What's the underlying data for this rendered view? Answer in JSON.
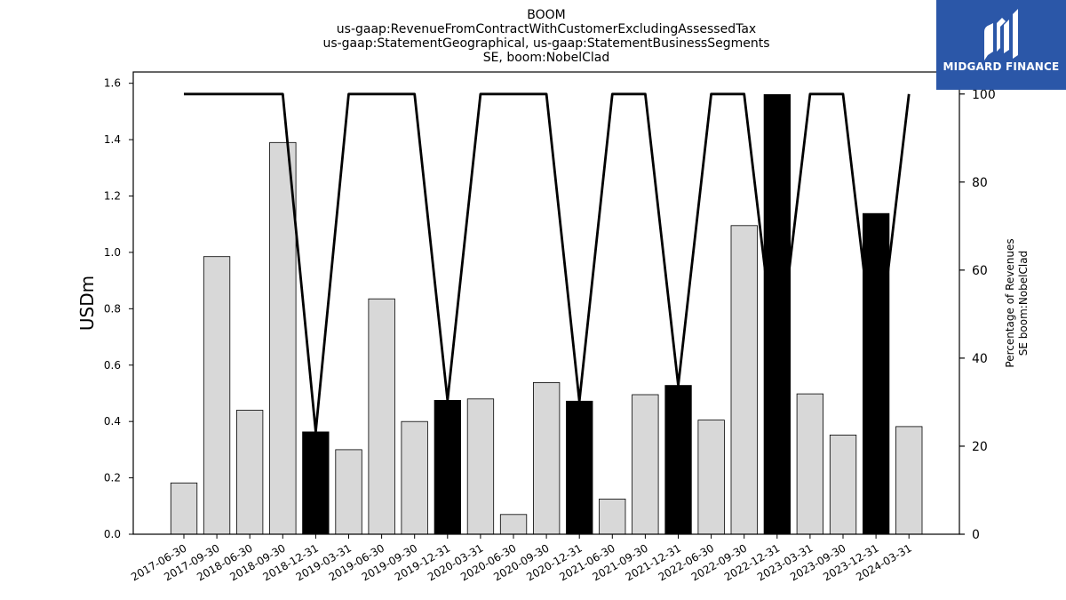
{
  "chart_data": {
    "type": "bar",
    "title_lines": [
      "BOOM",
      "us-gaap:RevenueFromContractWithCustomerExcludingAssessedTax",
      "us-gaap:StatementGeographical, us-gaap:StatementBusinessSegments",
      "SE, boom:NobelClad"
    ],
    "ylabel": "USDm",
    "y2label_lines": [
      "Percentage of Revenues",
      "SE boom:NobelClad"
    ],
    "categories": [
      "2017-06-30",
      "2017-09-30",
      "2018-06-30",
      "2018-09-30",
      "2018-12-31",
      "2019-03-31",
      "2019-06-30",
      "2019-09-30",
      "2019-12-31",
      "2020-03-31",
      "2020-06-30",
      "2020-09-30",
      "2020-12-31",
      "2021-06-30",
      "2021-09-30",
      "2021-12-31",
      "2022-06-30",
      "2022-09-30",
      "2022-12-31",
      "2023-03-31",
      "2023-09-30",
      "2023-12-31",
      "2024-03-31"
    ],
    "values": [
      0.182,
      0.985,
      0.44,
      1.39,
      0.363,
      0.3,
      0.835,
      0.4,
      0.475,
      0.48,
      0.07,
      0.538,
      0.472,
      0.125,
      0.495,
      0.528,
      0.405,
      1.095,
      1.56,
      0.498,
      0.352,
      1.138,
      0.382
    ],
    "highlighted": [
      false,
      false,
      false,
      false,
      true,
      false,
      false,
      false,
      true,
      false,
      false,
      false,
      true,
      false,
      false,
      true,
      false,
      false,
      true,
      false,
      false,
      true,
      false
    ],
    "percent_series": [
      100,
      100,
      100,
      100,
      23.3,
      100,
      100,
      100,
      30.4,
      100,
      100,
      100,
      30.2,
      100,
      100,
      33.8,
      100,
      100,
      37.0,
      100,
      100,
      36.5,
      100
    ],
    "ylim": [
      0,
      1.64
    ],
    "yticks": [
      0.0,
      0.2,
      0.4,
      0.6,
      0.8,
      1.0,
      1.2,
      1.4,
      1.6
    ],
    "y2lim": [
      0,
      105
    ],
    "y2ticks": [
      0,
      20,
      40,
      60,
      80,
      100
    ],
    "colors": {
      "bar": "#d8d8d8",
      "highlight": "#000000",
      "line": "#000000"
    }
  },
  "logo": {
    "text": "MIDGARD FINANCE",
    "background": "#2b57a8"
  }
}
